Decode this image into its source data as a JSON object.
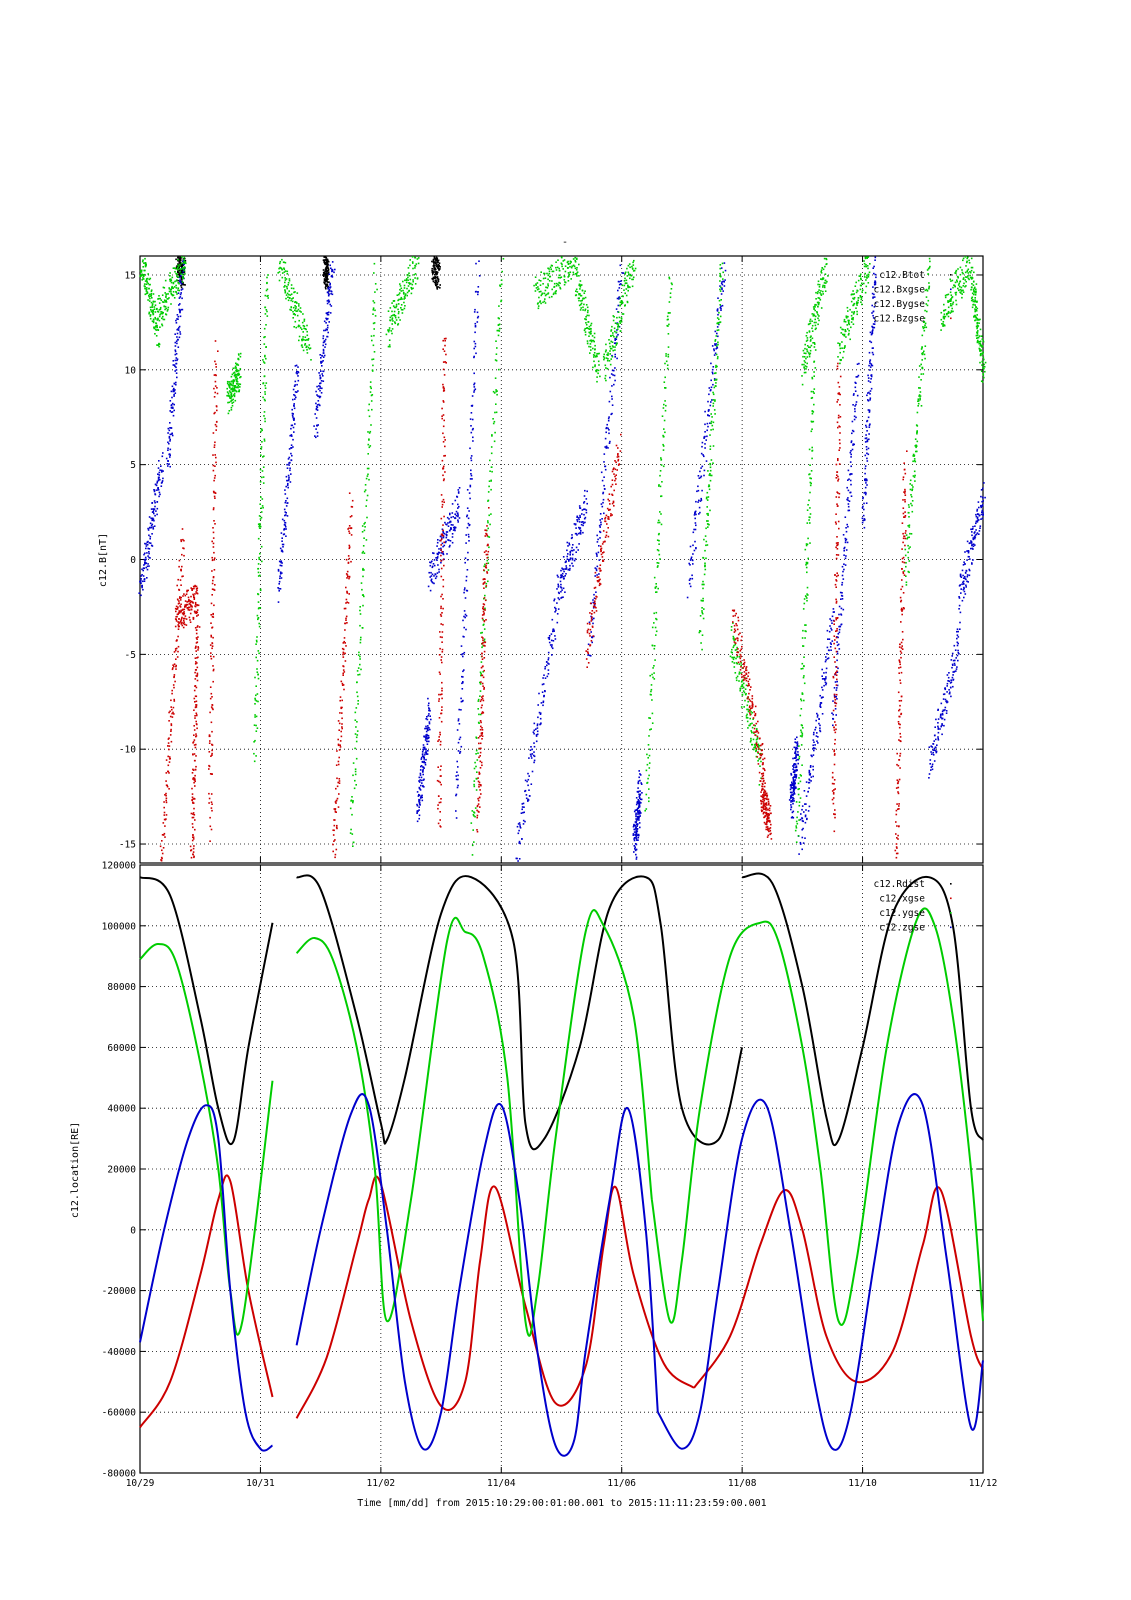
{
  "figure": {
    "top_title": "-",
    "xlabel": "Time [mm/dd]  from 2015:10:29:00:01:00.001  to  2015:11:11:23:59:00.001",
    "x_ticks": [
      "10/29",
      "10/31",
      "11/02",
      "11/04",
      "11/06",
      "11/08",
      "11/10",
      "11/12"
    ]
  },
  "colors": {
    "black": "#000000",
    "red": "#cc0000",
    "green": "#00cc00",
    "blue": "#0000cc",
    "grid": "#000000"
  },
  "chart_data": [
    {
      "type": "scatter",
      "ylabel": "c12.B[nT]",
      "xlim": [
        0,
        14
      ],
      "ylim": [
        -16,
        16
      ],
      "y_ticks": [
        15,
        10,
        5,
        0,
        -5,
        -10,
        -15
      ],
      "grid": true,
      "legend_position": "top-right",
      "legend": [
        "c12.Btot",
        "c12.Bxgse",
        "c12.Bygse",
        "c12.Bzgse"
      ],
      "series": [
        {
          "name": "c12.Btot",
          "color": "#000000",
          "segments": [
            [
              0.6,
              15.9,
              0.72,
              15.2
            ],
            [
              3.05,
              15.8,
              3.1,
              15.0
            ],
            [
              4.85,
              15.7,
              4.95,
              15.1
            ]
          ]
        },
        {
          "name": "c12.Bxgse",
          "color": "#0000cc",
          "segments": [
            [
              0.0,
              -1.5,
              0.35,
              5.0
            ],
            [
              0.45,
              5.0,
              0.7,
              15.5
            ],
            [
              2.3,
              -1.5,
              2.6,
              10.0
            ],
            [
              2.9,
              7.0,
              3.2,
              15.8
            ],
            [
              4.6,
              -13.0,
              4.8,
              -8.0
            ],
            [
              4.8,
              -1.0,
              5.3,
              3.0
            ],
            [
              5.25,
              -13.0,
              5.6,
              15.5
            ],
            [
              6.25,
              -15.5,
              6.9,
              -2.5
            ],
            [
              6.9,
              -2.0,
              7.4,
              3.0
            ],
            [
              7.45,
              -5.0,
              8.0,
              15.8
            ],
            [
              8.2,
              -15.0,
              8.3,
              -12.0
            ],
            [
              9.1,
              -1.5,
              9.7,
              15.5
            ],
            [
              10.8,
              -13.0,
              10.9,
              -10.0
            ],
            [
              10.95,
              -15.0,
              11.5,
              -3.0
            ],
            [
              11.5,
              -8.5,
              11.9,
              10.0
            ],
            [
              12.0,
              2.0,
              12.2,
              15.5
            ],
            [
              13.1,
              -11.0,
              13.6,
              -4.0
            ],
            [
              13.6,
              -2.0,
              14.0,
              3.5
            ]
          ]
        },
        {
          "name": "c12.Bygse",
          "color": "#00cc00",
          "segments": [
            [
              0.0,
              15.8,
              0.3,
              12.0
            ],
            [
              0.3,
              13.0,
              0.75,
              15.8
            ],
            [
              1.45,
              8.5,
              1.65,
              10.0
            ],
            [
              1.9,
              -10.0,
              2.1,
              15.5
            ],
            [
              2.3,
              15.8,
              2.8,
              11.0
            ],
            [
              3.5,
              -15.0,
              3.9,
              15.0
            ],
            [
              4.1,
              12.0,
              4.6,
              15.8
            ],
            [
              5.5,
              -15.0,
              6.0,
              15.5
            ],
            [
              6.55,
              14.0,
              7.2,
              15.8
            ],
            [
              7.2,
              15.5,
              7.6,
              10.0
            ],
            [
              7.7,
              10.0,
              8.2,
              15.8
            ],
            [
              8.4,
              -13.0,
              8.8,
              15.0
            ],
            [
              9.3,
              -4.0,
              9.65,
              15.8
            ],
            [
              9.8,
              -4.0,
              10.3,
              -11.0
            ],
            [
              10.9,
              -15.0,
              11.2,
              12.0
            ],
            [
              11.0,
              10.0,
              11.4,
              15.8
            ],
            [
              11.6,
              11.0,
              12.1,
              15.8
            ],
            [
              12.7,
              -1.0,
              13.1,
              15.5
            ],
            [
              13.3,
              13.0,
              13.8,
              15.8
            ],
            [
              13.8,
              15.0,
              14.0,
              10.0
            ]
          ]
        },
        {
          "name": "c12.Bzgse",
          "color": "#cc0000",
          "segments": [
            [
              0.35,
              -16.0,
              0.7,
              1.0
            ],
            [
              0.6,
              -3.0,
              0.95,
              -2.0
            ],
            [
              0.85,
              -16.0,
              0.95,
              -3.0
            ],
            [
              1.15,
              -14.0,
              1.25,
              11.0
            ],
            [
              3.2,
              -16.0,
              3.5,
              3.0
            ],
            [
              4.95,
              -14.0,
              5.05,
              12.0
            ],
            [
              5.6,
              -14.0,
              5.75,
              2.0
            ],
            [
              7.4,
              -5.0,
              7.95,
              6.0
            ],
            [
              9.85,
              -3.0,
              10.35,
              -11.0
            ],
            [
              10.3,
              -12.0,
              10.45,
              -14.0
            ],
            [
              11.5,
              -14.0,
              11.6,
              10.0
            ],
            [
              12.55,
              -16.0,
              12.7,
              5.0
            ]
          ]
        }
      ]
    },
    {
      "type": "line",
      "ylabel": "c12.location[RE]",
      "xlim": [
        0,
        14
      ],
      "ylim": [
        -80000,
        120000
      ],
      "y_ticks": [
        120000,
        100000,
        80000,
        60000,
        40000,
        20000,
        0,
        -20000,
        -40000,
        -60000,
        -80000
      ],
      "grid": true,
      "legend_position": "top-right",
      "legend": [
        "c12.Rdist",
        "c12.xgse",
        "c12.ygse",
        "c12.zgse"
      ],
      "series": [
        {
          "name": "c12.Rdist",
          "color": "#000000",
          "segments": [
            {
              "x": [
                0.0,
                0.5,
                1.0,
                1.3,
                1.55,
                1.8,
                2.2
              ],
              "y": [
                116000,
                110000,
                70000,
                40000,
                29000,
                60000,
                101000
              ]
            },
            {
              "x": [
                2.6,
                3.0,
                3.6,
                4.0,
                4.1,
                4.4,
                5.0,
                5.5,
                6.2,
                6.4,
                6.7,
                7.3,
                7.8,
                8.4,
                8.65,
                9.0,
                9.6,
                10.0
              ],
              "y": [
                116000,
                112000,
                70000,
                35000,
                29500,
                50000,
                104000,
                116000,
                95000,
                35000,
                29500,
                60000,
                106000,
                116000,
                100000,
                40000,
                29500,
                60000
              ]
            },
            {
              "x": [
                10.0,
                10.5,
                11.0,
                11.4,
                11.6,
                12.0,
                12.5,
                13.1,
                13.5,
                13.8,
                14.0
              ],
              "y": [
                116000,
                114000,
                80000,
                37000,
                29500,
                60000,
                104000,
                116000,
                100000,
                40000,
                29500
              ]
            }
          ]
        },
        {
          "name": "c12.xgse",
          "color": "#cc0000",
          "segments": [
            {
              "x": [
                0.0,
                0.5,
                1.0,
                1.3,
                1.5,
                1.8,
                2.2
              ],
              "y": [
                -65000,
                -50000,
                -15000,
                10000,
                16000,
                -20000,
                -55000
              ]
            },
            {
              "x": [
                2.6,
                3.1,
                3.6,
                3.8,
                4.0,
                4.5,
                5.0,
                5.4,
                5.65,
                5.9,
                6.4,
                6.9,
                7.4,
                7.7,
                7.9,
                8.2,
                8.7,
                9.2
              ],
              "y": [
                -62000,
                -42000,
                -5000,
                10000,
                15000,
                -30000,
                -58000,
                -50000,
                -10000,
                14000,
                -25000,
                -57000,
                -45000,
                -5000,
                14000,
                -15000,
                -44000,
                -52000
              ]
            },
            {
              "x": [
                9.2,
                9.8,
                10.3,
                10.7,
                11.0,
                11.4,
                11.9,
                12.5,
                13.0,
                13.3,
                13.8,
                14.0
              ],
              "y": [
                -52000,
                -35000,
                -5000,
                13000,
                0,
                -35000,
                -50000,
                -40000,
                -5000,
                13000,
                -35000,
                -46000
              ]
            }
          ]
        },
        {
          "name": "c12.ygse",
          "color": "#00cc00",
          "segments": [
            {
              "x": [
                0.0,
                0.3,
                0.6,
                1.0,
                1.3,
                1.5,
                1.7,
                2.2
              ],
              "y": [
                89000,
                94000,
                88000,
                55000,
                20000,
                -20000,
                -30000,
                49000
              ]
            },
            {
              "x": [
                2.6,
                2.9,
                3.2,
                3.6,
                3.9,
                4.1,
                4.5,
                5.1,
                5.4,
                5.7,
                6.1,
                6.4,
                6.6,
                6.9,
                7.4,
                7.7,
                8.2,
                8.5
              ],
              "y": [
                91000,
                96000,
                89000,
                60000,
                20000,
                -30000,
                10000,
                95000,
                98000,
                90000,
                50000,
                -30000,
                -20000,
                30000,
                98000,
                100000,
                70000,
                10000
              ]
            },
            {
              "x": [
                8.5,
                8.8,
                9.0,
                9.3,
                9.8,
                10.3,
                10.6,
                11.0,
                11.3,
                11.6,
                11.9,
                12.4,
                12.9,
                13.2,
                13.5,
                13.8,
                14.0
              ],
              "y": [
                10000,
                -30000,
                -10000,
                40000,
                90000,
                101000,
                95000,
                60000,
                20000,
                -30000,
                -10000,
                60000,
                102000,
                100000,
                70000,
                20000,
                -30000
              ]
            }
          ]
        },
        {
          "name": "c12.zgse",
          "color": "#0000cc",
          "segments": [
            {
              "x": [
                0.0,
                0.4,
                0.8,
                1.1,
                1.3,
                1.5,
                1.75,
                2.0,
                2.2
              ],
              "y": [
                -37000,
                0,
                30000,
                41000,
                30000,
                -20000,
                -60000,
                -72000,
                -71000
              ]
            },
            {
              "x": [
                2.6,
                3.0,
                3.5,
                3.8,
                4.1,
                4.4,
                4.7,
                5.0,
                5.3,
                5.7,
                6.0,
                6.3,
                6.6,
                6.9,
                7.2,
                7.4,
                7.8,
                8.1,
                8.4,
                8.6
              ],
              "y": [
                -38000,
                0,
                38000,
                41000,
                0,
                -50000,
                -72000,
                -60000,
                -20000,
                25000,
                41000,
                10000,
                -40000,
                -71000,
                -70000,
                -40000,
                10000,
                40000,
                0,
                -60000
              ]
            },
            {
              "x": [
                8.6,
                9.0,
                9.3,
                9.6,
                10.0,
                10.4,
                10.8,
                11.2,
                11.5,
                11.8,
                12.2,
                12.6,
                13.0,
                13.4,
                13.8,
                14.0
              ],
              "y": [
                -60000,
                -72000,
                -60000,
                -20000,
                30000,
                41000,
                0,
                -50000,
                -72000,
                -60000,
                -10000,
                35000,
                41000,
                -10000,
                -65000,
                -43000
              ]
            }
          ]
        }
      ]
    }
  ]
}
